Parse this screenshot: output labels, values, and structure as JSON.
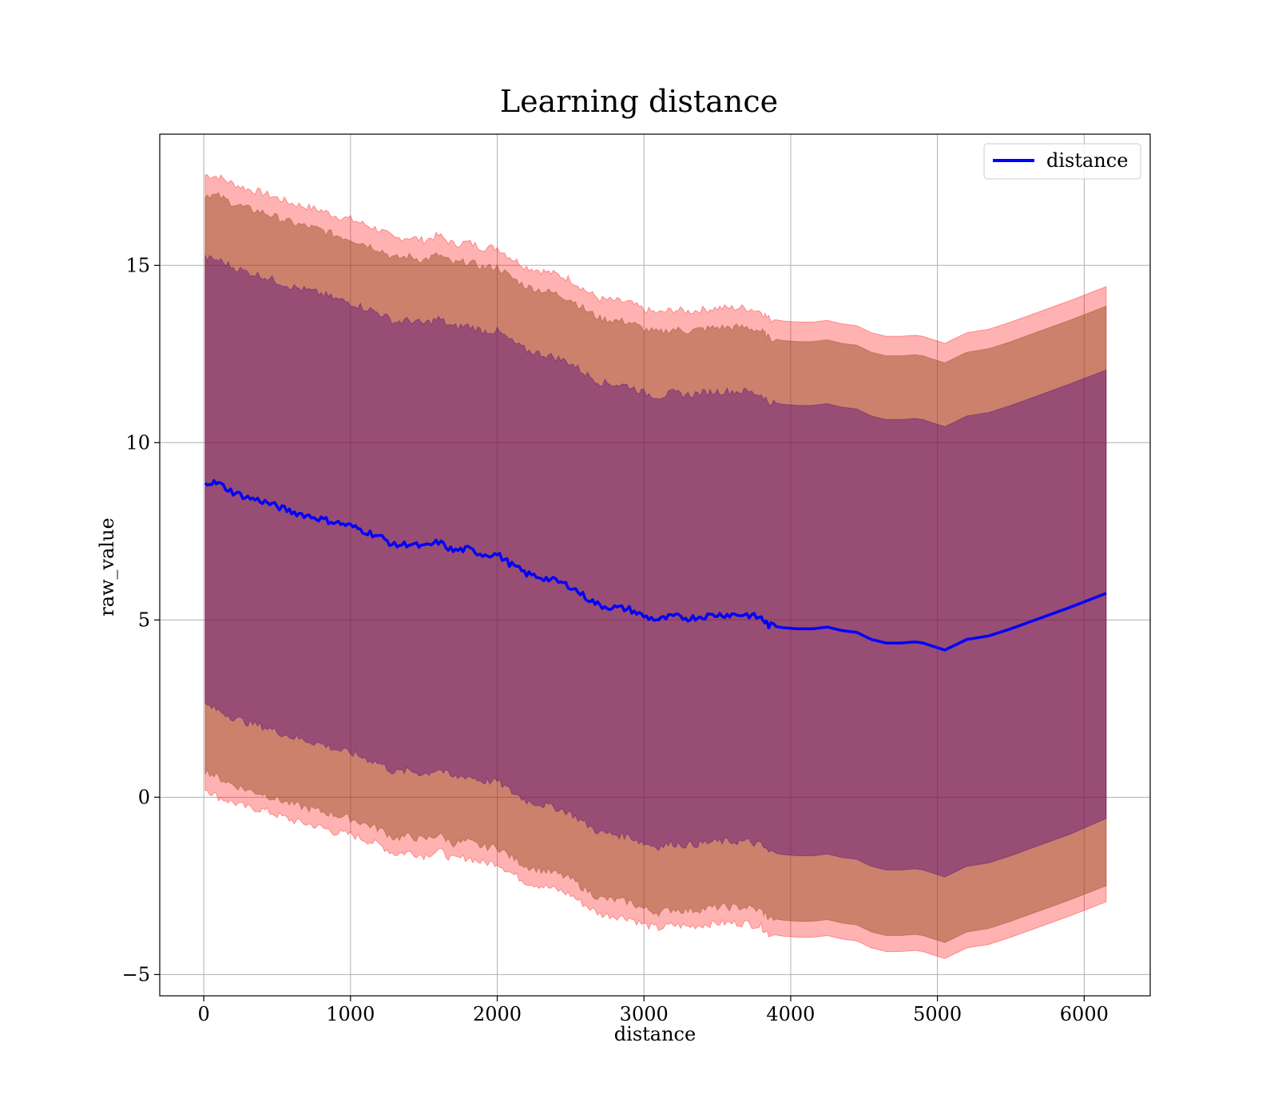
{
  "chart_data": {
    "type": "line",
    "title": "Learning distance",
    "xlabel": "distance",
    "ylabel": "raw_value",
    "xlim": [
      -300,
      6450
    ],
    "ylim": [
      -5.6,
      18.7
    ],
    "xticks": [
      0,
      1000,
      2000,
      3000,
      4000,
      5000,
      6000
    ],
    "xtick_labels": [
      "0",
      "1000",
      "2000",
      "3000",
      "4000",
      "5000",
      "6000"
    ],
    "yticks": [
      -5,
      0,
      5,
      10,
      15
    ],
    "ytick_labels": [
      "−5",
      "0",
      "5",
      "10",
      "15"
    ],
    "grid": true,
    "legend": {
      "location": "upper right",
      "entries": [
        "distance"
      ]
    },
    "colors": {
      "line": "#0000ff",
      "band_outer": "#ff0000",
      "band_middle": "#8b4513",
      "band_inner": "#4b0082"
    },
    "x": [
      10,
      100,
      200,
      300,
      400,
      500,
      600,
      700,
      800,
      900,
      1000,
      1100,
      1200,
      1300,
      1400,
      1500,
      1600,
      1700,
      1800,
      1900,
      2000,
      2100,
      2200,
      2300,
      2400,
      2500,
      2600,
      2700,
      2800,
      2900,
      3000,
      3100,
      3200,
      3300,
      3400,
      3500,
      3600,
      3700,
      3800,
      3850,
      3950,
      4050,
      4150,
      4250,
      4350,
      4450,
      4550,
      4650,
      4750,
      4850,
      4900,
      5050,
      5200,
      5350,
      5500,
      5700,
      5900,
      6150
    ],
    "series": [
      {
        "name": "distance",
        "values": [
          8.9,
          8.85,
          8.6,
          8.45,
          8.35,
          8.2,
          8.05,
          7.95,
          7.85,
          7.75,
          7.65,
          7.5,
          7.35,
          7.1,
          7.15,
          7.05,
          7.2,
          6.95,
          7.0,
          6.85,
          6.85,
          6.55,
          6.3,
          6.2,
          6.1,
          5.95,
          5.65,
          5.4,
          5.35,
          5.3,
          5.1,
          5.0,
          5.1,
          5.05,
          5.1,
          5.15,
          5.15,
          5.15,
          5.05,
          4.85,
          4.78,
          4.75,
          4.75,
          4.8,
          4.7,
          4.65,
          4.45,
          4.35,
          4.35,
          4.38,
          4.35,
          4.15,
          4.45,
          4.55,
          4.75,
          5.05,
          5.35,
          5.75
        ]
      }
    ],
    "bands": [
      {
        "level": "outer",
        "lower": [
          0.25,
          0.0,
          -0.15,
          -0.3,
          -0.35,
          -0.5,
          -0.65,
          -0.75,
          -0.85,
          -1.0,
          -1.05,
          -1.2,
          -1.35,
          -1.6,
          -1.55,
          -1.65,
          -1.5,
          -1.75,
          -1.7,
          -1.85,
          -1.85,
          -2.15,
          -2.4,
          -2.5,
          -2.6,
          -2.75,
          -3.05,
          -3.3,
          -3.35,
          -3.4,
          -3.6,
          -3.7,
          -3.6,
          -3.65,
          -3.6,
          -3.55,
          -3.55,
          -3.55,
          -3.65,
          -3.85,
          -3.92,
          -3.95,
          -3.95,
          -3.9,
          -4.0,
          -4.05,
          -4.25,
          -4.35,
          -4.35,
          -4.32,
          -4.35,
          -4.55,
          -4.25,
          -4.15,
          -3.95,
          -3.65,
          -3.35,
          -2.95
        ],
        "upper": [
          17.55,
          17.5,
          17.3,
          17.15,
          17.05,
          16.9,
          16.75,
          16.65,
          16.55,
          16.4,
          16.3,
          16.15,
          16.0,
          15.75,
          15.8,
          15.7,
          15.85,
          15.6,
          15.65,
          15.5,
          15.5,
          15.2,
          14.95,
          14.85,
          14.75,
          14.6,
          14.3,
          14.05,
          14.0,
          13.95,
          13.75,
          13.65,
          13.75,
          13.7,
          13.75,
          13.8,
          13.8,
          13.8,
          13.7,
          13.5,
          13.43,
          13.4,
          13.4,
          13.45,
          13.35,
          13.3,
          13.1,
          13.0,
          13.0,
          13.03,
          13.0,
          12.8,
          13.1,
          13.2,
          13.4,
          13.7,
          14.0,
          14.4
        ]
      },
      {
        "level": "middle",
        "lower": [
          0.75,
          0.55,
          0.35,
          0.2,
          0.1,
          -0.05,
          -0.2,
          -0.3,
          -0.4,
          -0.5,
          -0.6,
          -0.75,
          -0.9,
          -1.15,
          -1.1,
          -1.2,
          -1.05,
          -1.3,
          -1.25,
          -1.4,
          -1.4,
          -1.7,
          -1.95,
          -2.05,
          -2.15,
          -2.3,
          -2.6,
          -2.85,
          -2.9,
          -2.95,
          -3.15,
          -3.25,
          -3.15,
          -3.2,
          -3.15,
          -3.1,
          -3.1,
          -3.1,
          -3.2,
          -3.4,
          -3.47,
          -3.5,
          -3.5,
          -3.45,
          -3.55,
          -3.6,
          -3.8,
          -3.9,
          -3.9,
          -3.87,
          -3.9,
          -4.1,
          -3.8,
          -3.7,
          -3.5,
          -3.2,
          -2.9,
          -2.5
        ],
        "upper": [
          17.0,
          16.95,
          16.75,
          16.6,
          16.5,
          16.35,
          16.2,
          16.1,
          16.0,
          15.85,
          15.75,
          15.6,
          15.45,
          15.2,
          15.25,
          15.15,
          15.3,
          15.05,
          15.1,
          14.95,
          14.95,
          14.65,
          14.4,
          14.3,
          14.2,
          14.05,
          13.75,
          13.5,
          13.45,
          13.4,
          13.2,
          13.1,
          13.2,
          13.15,
          13.2,
          13.25,
          13.25,
          13.25,
          13.15,
          12.95,
          12.88,
          12.85,
          12.85,
          12.9,
          12.8,
          12.75,
          12.55,
          12.45,
          12.45,
          12.48,
          12.45,
          12.25,
          12.55,
          12.65,
          12.85,
          13.15,
          13.45,
          13.85
        ]
      },
      {
        "level": "inner",
        "lower": [
          2.6,
          2.45,
          2.25,
          2.1,
          2.0,
          1.85,
          1.7,
          1.6,
          1.5,
          1.35,
          1.25,
          1.1,
          0.95,
          0.7,
          0.75,
          0.65,
          0.8,
          0.55,
          0.6,
          0.45,
          0.45,
          0.15,
          -0.1,
          -0.2,
          -0.3,
          -0.45,
          -0.75,
          -1.0,
          -1.05,
          -1.1,
          -1.3,
          -1.4,
          -1.3,
          -1.35,
          -1.3,
          -1.25,
          -1.25,
          -1.25,
          -1.35,
          -1.55,
          -1.62,
          -1.65,
          -1.65,
          -1.6,
          -1.7,
          -1.75,
          -1.95,
          -2.05,
          -2.05,
          -2.02,
          -2.05,
          -2.25,
          -1.95,
          -1.85,
          -1.65,
          -1.35,
          -1.05,
          -0.6
        ],
        "upper": [
          15.2,
          15.15,
          14.95,
          14.8,
          14.7,
          14.55,
          14.4,
          14.3,
          14.2,
          14.05,
          13.95,
          13.8,
          13.65,
          13.4,
          13.45,
          13.35,
          13.5,
          13.25,
          13.3,
          13.15,
          13.15,
          12.85,
          12.6,
          12.5,
          12.4,
          12.25,
          11.95,
          11.7,
          11.65,
          11.6,
          11.4,
          11.3,
          11.4,
          11.35,
          11.4,
          11.45,
          11.45,
          11.45,
          11.35,
          11.15,
          11.08,
          11.05,
          11.05,
          11.1,
          11.0,
          10.95,
          10.75,
          10.65,
          10.65,
          10.68,
          10.65,
          10.45,
          10.75,
          10.85,
          11.05,
          11.35,
          11.65,
          12.05
        ]
      }
    ]
  }
}
